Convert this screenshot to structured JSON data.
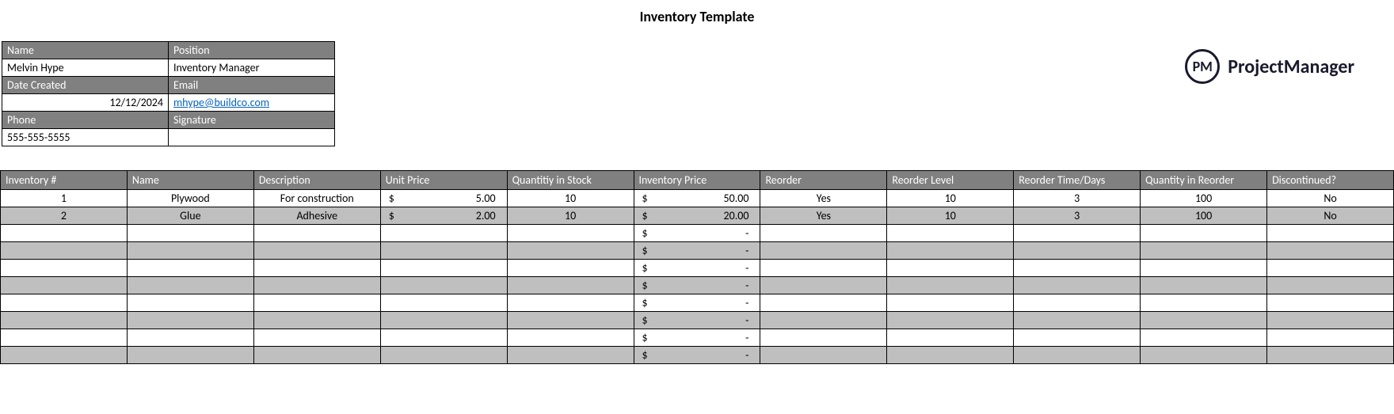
{
  "title": "Inventory Template",
  "logo": {
    "icon_text": "PM",
    "brand": "ProjectManager"
  },
  "info": {
    "name_label": "Name",
    "name_value": "Melvin Hype",
    "position_label": "Position",
    "position_value": "Inventory Manager",
    "date_label": "Date Created",
    "date_value": "12/12/2024",
    "email_label": "Email",
    "email_value": "mhype@buildco.com",
    "phone_label": "Phone",
    "phone_value": "555-555-5555",
    "signature_label": "Signature",
    "signature_value": ""
  },
  "columns": {
    "c0": "Inventory #",
    "c1": "Name",
    "c2": "Description",
    "c3": "Unit Price",
    "c4": "Quantitiy in Stock",
    "c5": "Inventory Price",
    "c6": "Reorder",
    "c7": "Reorder Level",
    "c8": "Reorder Time/Days",
    "c9": "Quantity in Reorder",
    "c10": "Discontinued?"
  },
  "col_widths": {
    "c0": "140px",
    "c1": "140px",
    "c2": "140px",
    "c3": "140px",
    "c4": "140px",
    "c5": "140px",
    "c6": "140px",
    "c7": "140px",
    "c8": "140px",
    "c9": "140px",
    "c10": "140px"
  },
  "rows": [
    {
      "inv": "1",
      "name": "Plywood",
      "desc": "For construction",
      "unit": "5.00",
      "qty": "10",
      "price": "50.00",
      "reorder": "Yes",
      "level": "10",
      "days": "3",
      "qreorder": "100",
      "disc": "No"
    },
    {
      "inv": "2",
      "name": "Glue",
      "desc": "Adhesive",
      "unit": "2.00",
      "qty": "10",
      "price": "20.00",
      "reorder": "Yes",
      "level": "10",
      "days": "3",
      "qreorder": "100",
      "disc": "No"
    },
    {
      "inv": "",
      "name": "",
      "desc": "",
      "unit": "",
      "qty": "",
      "price": "-",
      "reorder": "",
      "level": "",
      "days": "",
      "qreorder": "",
      "disc": ""
    },
    {
      "inv": "",
      "name": "",
      "desc": "",
      "unit": "",
      "qty": "",
      "price": "-",
      "reorder": "",
      "level": "",
      "days": "",
      "qreorder": "",
      "disc": ""
    },
    {
      "inv": "",
      "name": "",
      "desc": "",
      "unit": "",
      "qty": "",
      "price": "-",
      "reorder": "",
      "level": "",
      "days": "",
      "qreorder": "",
      "disc": ""
    },
    {
      "inv": "",
      "name": "",
      "desc": "",
      "unit": "",
      "qty": "",
      "price": "-",
      "reorder": "",
      "level": "",
      "days": "",
      "qreorder": "",
      "disc": ""
    },
    {
      "inv": "",
      "name": "",
      "desc": "",
      "unit": "",
      "qty": "",
      "price": "-",
      "reorder": "",
      "level": "",
      "days": "",
      "qreorder": "",
      "disc": ""
    },
    {
      "inv": "",
      "name": "",
      "desc": "",
      "unit": "",
      "qty": "",
      "price": "-",
      "reorder": "",
      "level": "",
      "days": "",
      "qreorder": "",
      "disc": ""
    },
    {
      "inv": "",
      "name": "",
      "desc": "",
      "unit": "",
      "qty": "",
      "price": "-",
      "reorder": "",
      "level": "",
      "days": "",
      "qreorder": "",
      "disc": ""
    },
    {
      "inv": "",
      "name": "",
      "desc": "",
      "unit": "",
      "qty": "",
      "price": "-",
      "reorder": "",
      "level": "",
      "days": "",
      "qreorder": "",
      "disc": ""
    }
  ],
  "currency_symbol": "$",
  "colors": {
    "header_bg": "#808080",
    "header_fg": "#ffffff",
    "row_odd": "#ffffff",
    "row_even": "#bfbfbf",
    "border": "#000000",
    "link": "#0563c1"
  }
}
